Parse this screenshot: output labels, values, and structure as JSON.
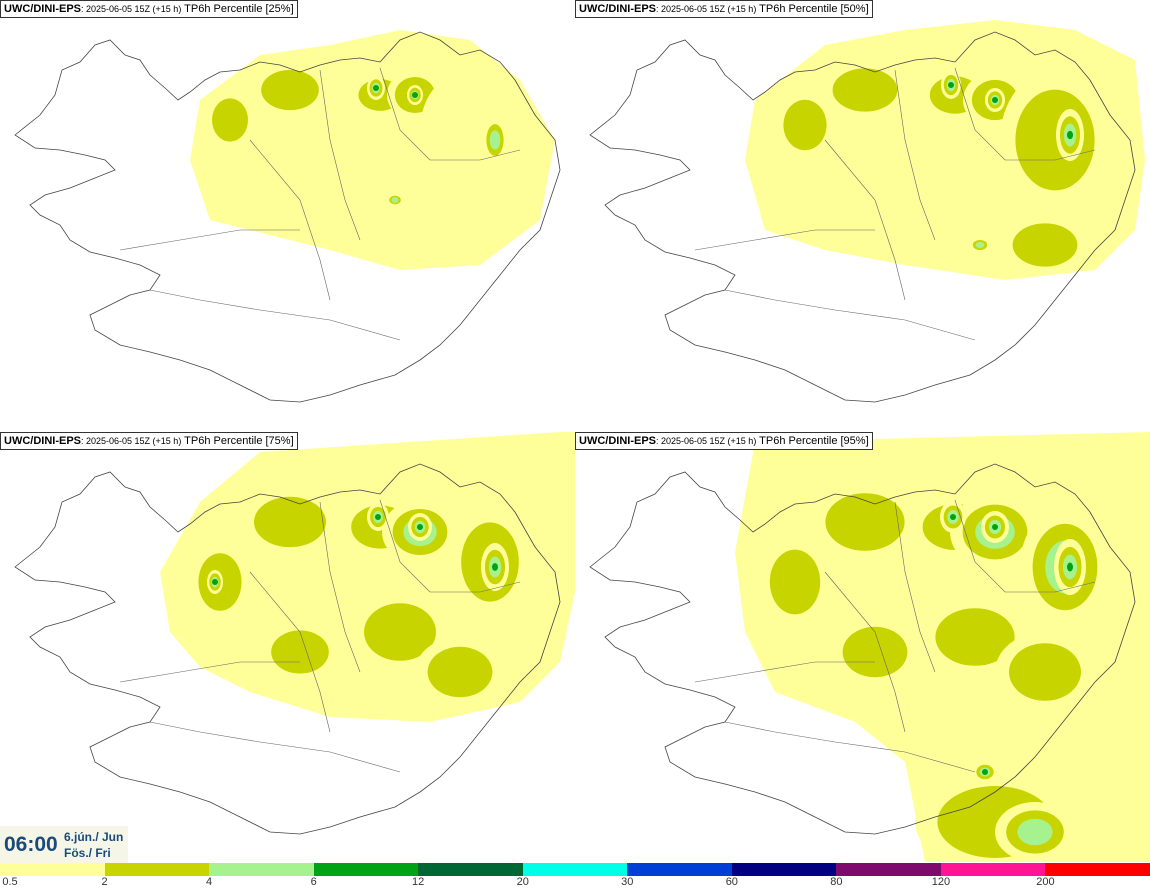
{
  "panels": [
    {
      "model": "UWC/DINI-EPS",
      "run": ": 2025-06-05 15Z (+15 h)",
      "variable": " TP6h Percentile [25%]",
      "percentile": 25
    },
    {
      "model": "UWC/DINI-EPS",
      "run": ": 2025-06-05 15Z (+15 h)",
      "variable": " TP6h Percentile [50%]",
      "percentile": 50
    },
    {
      "model": "UWC/DINI-EPS",
      "run": ": 2025-06-05 15Z (+15 h)",
      "variable": " TP6h Percentile [75%]",
      "percentile": 75
    },
    {
      "model": "UWC/DINI-EPS",
      "run": ": 2025-06-05 15Z (+15 h)",
      "variable": " TP6h Percentile [95%]",
      "percentile": 95
    }
  ],
  "time": {
    "hour": "06:00",
    "date_line1": "6.jún./ Jun",
    "date_line2": "Fös./ Fri"
  },
  "legend": {
    "labels": [
      "0.5",
      "2",
      "4",
      "6",
      "12",
      "20",
      "30",
      "60",
      "80",
      "120",
      "200"
    ],
    "colors": [
      "#ffff99",
      "#c8d400",
      "#a6f28f",
      "#00a316",
      "#006633",
      "#00ffe6",
      "#003fd6",
      "#000080",
      "#7e0a6e",
      "#ff1493",
      "#ff0000"
    ]
  }
}
